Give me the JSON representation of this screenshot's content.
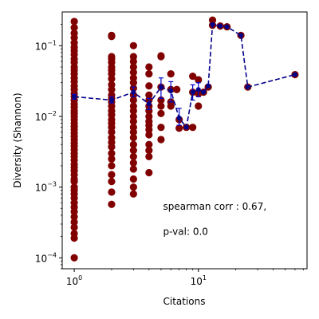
{
  "chart_data": {
    "type": "scatter",
    "title": "",
    "xlabel": "Citations",
    "ylabel": "Diversity (Shannon)",
    "x_scale": "log",
    "y_scale": "log",
    "xlim": [
      0.8,
      75
    ],
    "ylim": [
      7e-05,
      0.3
    ],
    "grid": false,
    "x_ticks": [
      {
        "value": 1,
        "base": "10",
        "exp": "0"
      },
      {
        "value": 10,
        "base": "10",
        "exp": "1"
      }
    ],
    "y_ticks": [
      {
        "value": 0.0001,
        "base": "10",
        "exp": "−4"
      },
      {
        "value": 0.001,
        "base": "10",
        "exp": "−3"
      },
      {
        "value": 0.01,
        "base": "10",
        "exp": "−2"
      },
      {
        "value": 0.1,
        "base": "10",
        "exp": "−1"
      }
    ],
    "colors": {
      "points": "#800000",
      "mean_line": "#00008b",
      "errorbars": "#0000cd"
    },
    "scatter_points": [
      {
        "x": 1,
        "y": [
          0.22,
          0.18,
          0.15,
          0.13,
          0.11,
          0.095,
          0.085,
          0.075,
          0.065,
          0.058,
          0.05,
          0.045,
          0.04,
          0.035,
          0.031,
          0.027,
          0.024,
          0.021,
          0.019,
          0.017,
          0.015,
          0.0135,
          0.012,
          0.011,
          0.01,
          0.009,
          0.008,
          0.0072,
          0.0065,
          0.0058,
          0.0052,
          0.0047,
          0.0042,
          0.0038,
          0.0034,
          0.003,
          0.0027,
          0.0024,
          0.0021,
          0.0019,
          0.0017,
          0.0015,
          0.0013,
          0.0012,
          0.001,
          0.0009,
          0.0008,
          0.0007,
          0.0006,
          0.00052,
          0.00045,
          0.00038,
          0.00032,
          0.00027,
          0.00022,
          0.00019,
          0.0001
        ]
      },
      {
        "x": 2,
        "y": [
          0.14,
          0.135,
          0.07,
          0.065,
          0.058,
          0.05,
          0.045,
          0.04,
          0.034,
          0.028,
          0.024,
          0.02,
          0.018,
          0.016,
          0.014,
          0.012,
          0.0105,
          0.009,
          0.008,
          0.007,
          0.006,
          0.005,
          0.0043,
          0.0037,
          0.003,
          0.0025,
          0.002,
          0.0015,
          0.0012,
          0.00085,
          0.00057
        ]
      },
      {
        "x": 3,
        "y": [
          0.1,
          0.07,
          0.06,
          0.05,
          0.042,
          0.035,
          0.03,
          0.025,
          0.02,
          0.017,
          0.014,
          0.012,
          0.01,
          0.0085,
          0.007,
          0.006,
          0.005,
          0.004,
          0.0033,
          0.0027,
          0.0022,
          0.0018,
          0.0013,
          0.001,
          0.0008
        ]
      },
      {
        "x": 4,
        "y": [
          0.05,
          0.04,
          0.027,
          0.02,
          0.017,
          0.014,
          0.012,
          0.01,
          0.0085,
          0.0075,
          0.0065,
          0.0055,
          0.004,
          0.0033,
          0.0027,
          0.0016
        ]
      },
      {
        "x": 5,
        "y": [
          0.072,
          0.07,
          0.026,
          0.017,
          0.014,
          0.011,
          0.007,
          0.0047
        ]
      },
      {
        "x": 6,
        "y": [
          0.04,
          0.024,
          0.016,
          0.014
        ]
      },
      {
        "x": 6.7,
        "y": [
          0.024
        ]
      },
      {
        "x": 7,
        "y": [
          0.009,
          0.0068
        ]
      },
      {
        "x": 8,
        "y": [
          0.007
        ]
      },
      {
        "x": 9,
        "y": [
          0.037,
          0.022,
          0.007
        ]
      },
      {
        "x": 10,
        "y": [
          0.033,
          0.021,
          0.014
        ]
      },
      {
        "x": 11,
        "y": [
          0.022
        ]
      },
      {
        "x": 12,
        "y": [
          0.026
        ]
      },
      {
        "x": 13,
        "y": [
          0.23,
          0.195
        ]
      },
      {
        "x": 15,
        "y": [
          0.19
        ]
      },
      {
        "x": 17,
        "y": [
          0.185
        ]
      },
      {
        "x": 22,
        "y": [
          0.14
        ]
      },
      {
        "x": 25,
        "y": [
          0.026
        ]
      },
      {
        "x": 60,
        "y": [
          0.039
        ]
      }
    ],
    "mean_series": {
      "x": [
        1,
        2,
        3,
        4,
        5,
        6,
        7,
        8,
        9,
        10,
        11,
        12,
        13,
        15,
        17,
        22,
        25,
        60
      ],
      "y": [
        0.019,
        0.017,
        0.022,
        0.015,
        0.026,
        0.023,
        0.0095,
        0.007,
        0.022,
        0.024,
        0.022,
        0.027,
        0.2,
        0.19,
        0.185,
        0.14,
        0.026,
        0.039
      ],
      "err_low": [
        0.0175,
        0.0155,
        0.019,
        0.0125,
        0.018,
        0.016,
        0.0075,
        0.007,
        0.017,
        0.019,
        0.022,
        0.027,
        0.2,
        0.19,
        0.185,
        0.14,
        0.026,
        0.039
      ],
      "err_high": [
        0.0205,
        0.019,
        0.026,
        0.018,
        0.035,
        0.031,
        0.013,
        0.007,
        0.028,
        0.03,
        0.022,
        0.027,
        0.2,
        0.19,
        0.185,
        0.14,
        0.026,
        0.039
      ]
    },
    "annotations": [
      {
        "text": "spearman corr : 0.67,",
        "x": 5.2,
        "y": 0.00048
      },
      {
        "text": "p-val: 0.0",
        "x": 5.2,
        "y": 0.00021
      }
    ]
  }
}
